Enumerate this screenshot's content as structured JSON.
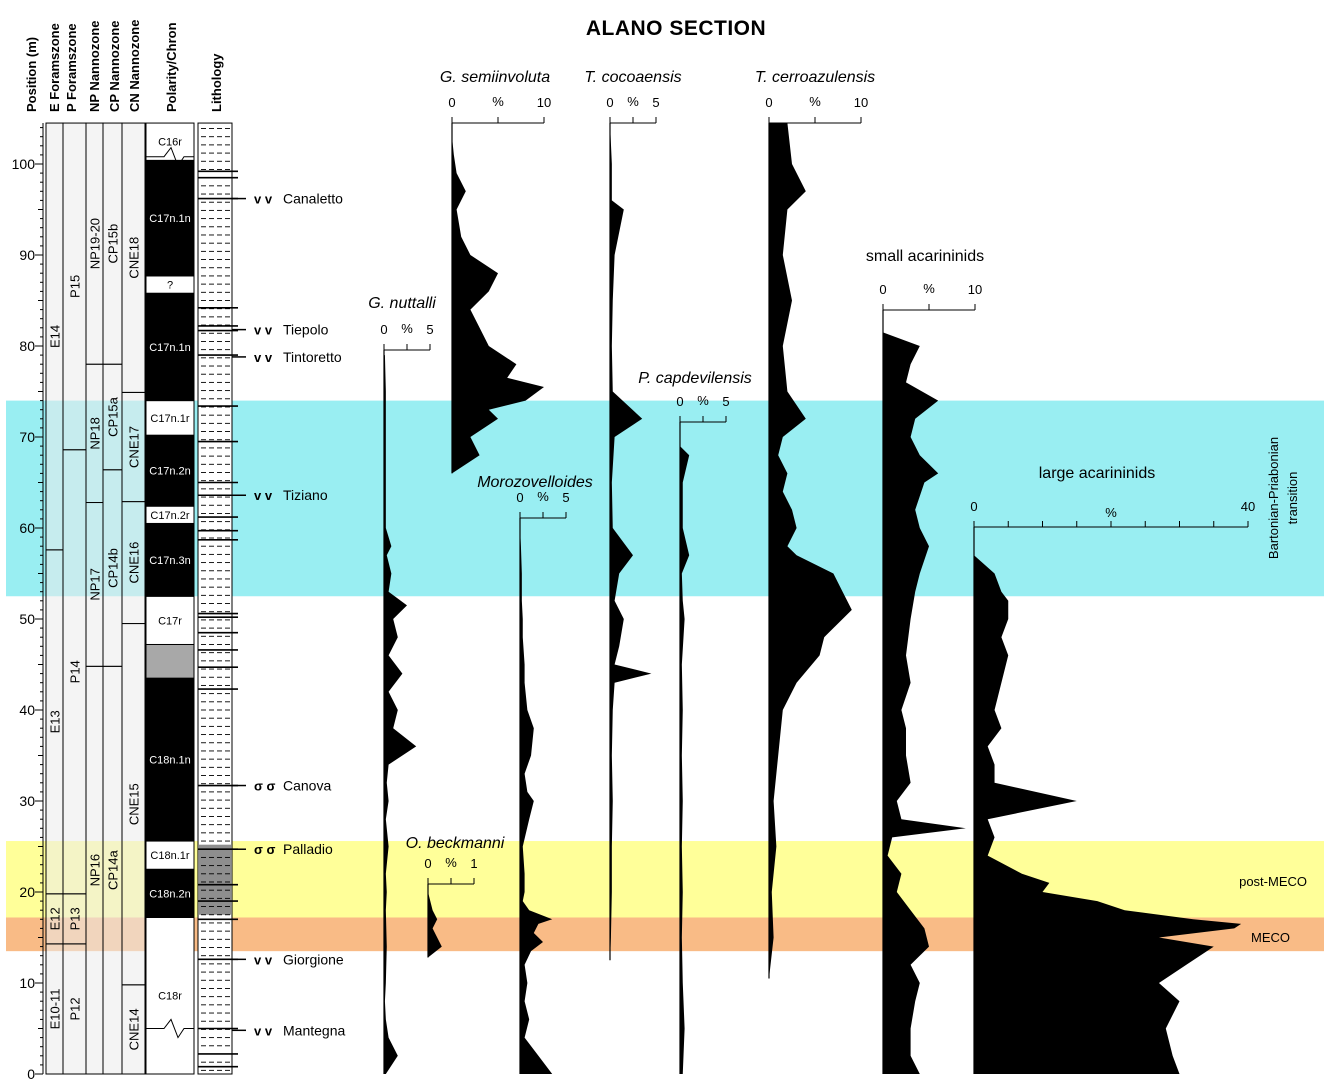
{
  "title": "ALANO SECTION",
  "columns": {
    "position": "Position  (m)",
    "e_foram": "E Foramszone",
    "p_foram": "P Foramszone",
    "np_nanno": "NP Nannozone",
    "cp_nanno": "CP Nannozone",
    "cn_nanno": "CN Nannozone",
    "polarity": "Polarity/Chron",
    "lithology": "Lithology"
  },
  "colors": {
    "band_cyan": "#99EEF2",
    "band_yellow": "#FFFF99",
    "band_orange": "#F9BB86",
    "zone_fill": "#EBEBEB",
    "gray_interval": "#A8A8A8",
    "profile": "#000000"
  },
  "bands": [
    {
      "label": "Bartonian-Priabonian transition",
      "from": 52.5,
      "to": 74.0,
      "color": "#99EEF2"
    },
    {
      "label": "post-MECO",
      "from": 17.2,
      "to": 25.6,
      "color": "#FFFF99"
    },
    {
      "label": "MECO",
      "from": 13.5,
      "to": 17.2,
      "color": "#F9BB86"
    }
  ],
  "zones": {
    "e": [
      {
        "label": "E10-11",
        "from": 0,
        "to": 14.3
      },
      {
        "label": "E12",
        "from": 14.3,
        "to": 19.8
      },
      {
        "label": "E13",
        "from": 19.8,
        "to": 57.6
      },
      {
        "label": "E14",
        "from": 57.6,
        "to": 104.5
      }
    ],
    "p": [
      {
        "label": "P12",
        "from": 0,
        "to": 14.3
      },
      {
        "label": "P13",
        "from": 14.3,
        "to": 19.8
      },
      {
        "label": "P14",
        "from": 19.8,
        "to": 68.6
      },
      {
        "label": "P15",
        "from": 68.6,
        "to": 104.5
      }
    ],
    "np": [
      {
        "label": "NP16",
        "from": 0,
        "to": 44.8
      },
      {
        "label": "NP17",
        "from": 44.8,
        "to": 62.8
      },
      {
        "label": "NP18",
        "from": 62.8,
        "to": 78.0
      },
      {
        "label": "NP19-20",
        "from": 78.0,
        "to": 104.5
      }
    ],
    "cp": [
      {
        "label": "CP14a",
        "from": 0,
        "to": 44.8
      },
      {
        "label": "CP14b",
        "from": 44.8,
        "to": 66.4
      },
      {
        "label": "CP15a",
        "from": 66.4,
        "to": 78.0
      },
      {
        "label": "CP15b",
        "from": 78.0,
        "to": 104.5
      }
    ],
    "cn": [
      {
        "label": "CNE14",
        "from": 0,
        "to": 9.8
      },
      {
        "label": "CNE15",
        "from": 9.8,
        "to": 49.5
      },
      {
        "label": "CNE16",
        "from": 49.5,
        "to": 62.9
      },
      {
        "label": "CNE17",
        "from": 62.9,
        "to": 74.9
      },
      {
        "label": "CNE18",
        "from": 74.9,
        "to": 104.5
      }
    ]
  },
  "chrons": [
    {
      "label": "C18r",
      "from": 0,
      "to": 17.2,
      "fill": "white"
    },
    {
      "label": "C18n.2n",
      "from": 17.2,
      "to": 22.5,
      "fill": "black"
    },
    {
      "label": "C18n.1r",
      "from": 22.5,
      "to": 25.6,
      "fill": "white"
    },
    {
      "label": "C18n.1n",
      "from": 25.6,
      "to": 43.5,
      "fill": "black"
    },
    {
      "label": "",
      "from": 43.5,
      "to": 47.2,
      "fill": "gray"
    },
    {
      "label": "C17r",
      "from": 47.2,
      "to": 52.5,
      "fill": "white"
    },
    {
      "label": "C17n.3n",
      "from": 52.5,
      "to": 60.5,
      "fill": "black"
    },
    {
      "label": "C17n.2r",
      "from": 60.5,
      "to": 62.4,
      "fill": "white"
    },
    {
      "label": "C17n.2n",
      "from": 62.4,
      "to": 70.2,
      "fill": "black"
    },
    {
      "label": "C17n.1r",
      "from": 70.2,
      "to": 74.0,
      "fill": "white"
    },
    {
      "label": "C17n.1n",
      "from": 74.0,
      "to": 85.8,
      "fill": "black"
    },
    {
      "label": "?",
      "from": 85.8,
      "to": 87.7,
      "fill": "white"
    },
    {
      "label": "C17n.1n",
      "from": 87.7,
      "to": 100.4,
      "fill": "black"
    },
    {
      "label": "C16r",
      "from": 100.4,
      "to": 104.5,
      "fill": "white"
    }
  ],
  "levels": [
    {
      "name": "Canaletto",
      "pos": 96.2,
      "mark": "v v"
    },
    {
      "name": "Tiepolo",
      "pos": 81.8,
      "mark": "v v"
    },
    {
      "name": "Tintoretto",
      "pos": 78.8,
      "mark": "v v"
    },
    {
      "name": "Tiziano",
      "pos": 63.6,
      "mark": "v v"
    },
    {
      "name": "Canova",
      "pos": 31.7,
      "mark": "σ σ"
    },
    {
      "name": "Palladio",
      "pos": 24.7,
      "mark": "σ σ"
    },
    {
      "name": "Giorgione",
      "pos": 12.6,
      "mark": "v v"
    },
    {
      "name": "Mantegna",
      "pos": 4.8,
      "mark": "v v"
    }
  ],
  "axis_ticks": [
    "0",
    "10",
    "20",
    "30",
    "40",
    "50",
    "60",
    "70",
    "80",
    "90",
    "100"
  ],
  "band_labels": {
    "bart": "Bartonian-Priabonian",
    "bart2": "transition",
    "postmeco": "post-MECO",
    "meco": "MECO"
  },
  "chart_data": {
    "type": "area",
    "title": "ALANO SECTION",
    "ylabel": "Position  (m)",
    "ylim": [
      0,
      104.5
    ],
    "series": [
      {
        "name": "G. nuttalli",
        "scale_max": 5,
        "scale_labels": [
          "0",
          "%",
          "5"
        ],
        "y": [
          0,
          2,
          4,
          6,
          8,
          10,
          14,
          18,
          20,
          22,
          25,
          28,
          30,
          32,
          34,
          36,
          38,
          40,
          42,
          44,
          46,
          48,
          50,
          51.5,
          53,
          55,
          57,
          58,
          60,
          65,
          70,
          75,
          79
        ],
        "values": [
          0.2,
          1.5,
          0.5,
          0.2,
          0.1,
          0.2,
          0.3,
          0.2,
          0.3,
          0.2,
          0.5,
          0.2,
          0.5,
          0.3,
          0.5,
          3.5,
          1.0,
          1.5,
          0.5,
          2.0,
          0.5,
          1.5,
          1.0,
          2.5,
          0.5,
          0.8,
          0.3,
          0.8,
          0.2,
          0.2,
          0.2,
          0.2,
          0.1
        ]
      },
      {
        "name": "O. beckmanni",
        "scale_max": 1,
        "scale_labels": [
          "0",
          "%",
          "1"
        ],
        "y": [
          12.8,
          14,
          15,
          16,
          17,
          18,
          19,
          20
        ],
        "values": [
          0,
          0.3,
          0.2,
          0.1,
          0.2,
          0.1,
          0.05,
          0
        ]
      },
      {
        "name": "Morozovelloides",
        "scale_max": 5,
        "scale_labels": [
          "0",
          "%",
          "5"
        ],
        "y": [
          0,
          2,
          4,
          6,
          8,
          10,
          12,
          13.5,
          14.5,
          15.5,
          16.5,
          17,
          18,
          19,
          20,
          22,
          25,
          28,
          30,
          31,
          33,
          35,
          38,
          40,
          43,
          45,
          48,
          50,
          52,
          55,
          58,
          60
        ],
        "values": [
          3.5,
          2,
          0.5,
          1.0,
          0.5,
          0.8,
          0.5,
          1.2,
          2.5,
          1.5,
          2.0,
          3.5,
          1.0,
          0.3,
          0.5,
          0.5,
          0.3,
          1.0,
          1.5,
          0.8,
          0.5,
          1.2,
          1.5,
          0.8,
          0.5,
          0.5,
          0.3,
          0.3,
          0.2,
          0.2,
          0.1,
          0
        ]
      },
      {
        "name": "G. semiinvoluta",
        "scale_max": 10,
        "scale_labels": [
          "0",
          "%",
          "10"
        ],
        "y": [
          66,
          68,
          70,
          72,
          73,
          74,
          75.5,
          76.5,
          78,
          80,
          82,
          84,
          86,
          88,
          90,
          92,
          95,
          97,
          99,
          101,
          103
        ],
        "values": [
          0,
          3,
          2,
          5,
          4,
          8,
          10,
          6,
          7,
          4,
          3,
          2,
          4,
          5,
          2,
          1,
          0.5,
          1.5,
          0.5,
          0.2,
          0
        ]
      },
      {
        "name": "T. cocoaensis",
        "scale_max": 5,
        "scale_labels": [
          "0",
          "%",
          "5"
        ],
        "y": [
          12.5,
          15,
          20,
          25,
          30,
          35,
          40,
          43,
          44,
          45,
          47,
          50,
          52,
          55,
          57,
          60,
          65,
          70,
          72,
          75,
          80,
          85,
          90,
          95,
          96,
          100,
          104.5
        ],
        "values": [
          0,
          0.1,
          0.2,
          0.2,
          0.3,
          0.2,
          0.3,
          0.5,
          4.5,
          0.5,
          1.0,
          1.5,
          0.5,
          1.0,
          2.5,
          0.3,
          0.2,
          0.5,
          3.5,
          0.3,
          0.2,
          0.3,
          0.5,
          1.5,
          0.2,
          0.2,
          0
        ]
      },
      {
        "name": "P. capdevilensis",
        "scale_max": 5,
        "scale_labels": [
          "0",
          "%",
          "5"
        ],
        "y": [
          0,
          5,
          10,
          15,
          20,
          25,
          30,
          35,
          40,
          45,
          50,
          52,
          55,
          57,
          60,
          65,
          68,
          69
        ],
        "values": [
          0.3,
          0.5,
          0.3,
          0.2,
          0.3,
          0.2,
          0.3,
          0.2,
          0.3,
          0.2,
          0.5,
          0.3,
          0.2,
          1.0,
          0.3,
          0.3,
          1.0,
          0
        ]
      },
      {
        "name": "T. cerroazulensis",
        "scale_max": 10,
        "scale_labels": [
          "0",
          "%",
          "10"
        ],
        "y": [
          10.5,
          15,
          20,
          25,
          30,
          35,
          40,
          43,
          46,
          48,
          51,
          53,
          55,
          57,
          58,
          60,
          62,
          64,
          66,
          68,
          70,
          72,
          75,
          80,
          85,
          90,
          95,
          97,
          100,
          104.5
        ],
        "values": [
          0,
          0.5,
          0.3,
          0.8,
          0.5,
          1.0,
          1.5,
          3.0,
          5.5,
          6.0,
          9.0,
          8.0,
          7.0,
          3.0,
          2.0,
          3.0,
          2.5,
          1.5,
          2.0,
          1.0,
          1.5,
          4.0,
          2.0,
          1.5,
          2.5,
          1.5,
          2.0,
          4.0,
          2.5,
          2.0
        ]
      },
      {
        "name": "small acarininids",
        "scale_max": 10,
        "scale_labels": [
          "0",
          "%",
          "10"
        ],
        "y": [
          0,
          2,
          5,
          8,
          10,
          12,
          14,
          16,
          18,
          20,
          22,
          24,
          26,
          27,
          28,
          30,
          32,
          35,
          38,
          40,
          43,
          46,
          50,
          53,
          55,
          58,
          60,
          62,
          65,
          66,
          68,
          70,
          72,
          74,
          76,
          78,
          80,
          81.5
        ],
        "values": [
          4,
          3,
          3,
          3.5,
          4,
          3,
          5,
          4.5,
          3,
          1.5,
          2,
          0.5,
          1,
          9,
          2,
          1.5,
          3,
          2.5,
          2.5,
          2,
          3,
          2.5,
          3,
          3.5,
          4,
          5,
          4,
          3.5,
          4.5,
          6,
          4,
          3,
          3.5,
          6,
          2.5,
          3,
          4,
          0
        ]
      },
      {
        "name": "large acarininids",
        "scale_max": 40,
        "scale_labels": [
          "0",
          "%",
          "40"
        ],
        "y": [
          0,
          2,
          5,
          8,
          10,
          12,
          14,
          15,
          16,
          16.5,
          17,
          18,
          19,
          20,
          21,
          22,
          24,
          26,
          28,
          30,
          32,
          34,
          36,
          38,
          40,
          43,
          46,
          48,
          50,
          52,
          53,
          55,
          57
        ],
        "values": [
          30,
          29,
          28,
          30,
          27,
          31,
          35,
          27,
          38,
          39,
          32,
          22,
          18,
          10,
          11,
          7,
          2,
          3,
          2,
          15,
          3,
          3,
          2,
          4,
          3,
          4,
          5,
          4,
          5,
          5,
          4,
          3,
          0
        ]
      }
    ]
  }
}
